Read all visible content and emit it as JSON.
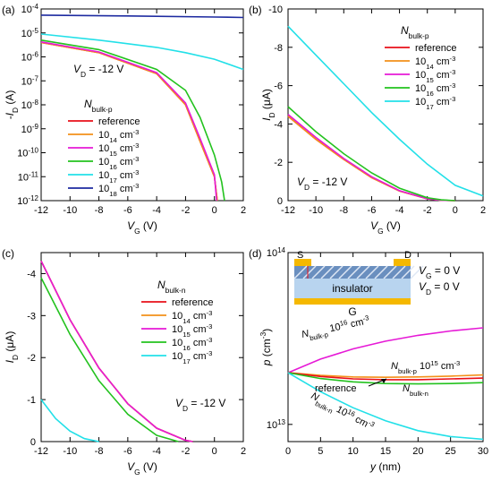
{
  "chart_data": [
    {
      "panel": "(a)",
      "type": "line",
      "xlabel_parts": [
        "V",
        "G",
        " (V)"
      ],
      "ylabel_parts": [
        "-I",
        "D",
        " (A)"
      ],
      "xlim": [
        -12,
        2
      ],
      "ylim_log10": [
        -12,
        -4
      ],
      "log_y": true,
      "x_ticks": [
        "-12",
        "-10",
        "-8",
        "-6",
        "-4",
        "-2",
        "0",
        "2"
      ],
      "y_ticks": [
        {
          "base": "10",
          "exp": "-4"
        },
        {
          "base": "10",
          "exp": "-5"
        },
        {
          "base": "10",
          "exp": "-6"
        },
        {
          "base": "10",
          "exp": "-7"
        },
        {
          "base": "10",
          "exp": "-8"
        },
        {
          "base": "10",
          "exp": "-9"
        },
        {
          "base": "10",
          "exp": "-10"
        },
        {
          "base": "10",
          "exp": "-11"
        },
        {
          "base": "10",
          "exp": "-12"
        }
      ],
      "annotation_parts": [
        "V",
        "D",
        " = -12 V"
      ],
      "legend_title_parts": [
        "N",
        "bulk-p"
      ],
      "series": [
        {
          "name_parts": [
            "reference",
            ""
          ],
          "color": "#e8101a",
          "x": [
            -12,
            -8,
            -4,
            -2,
            -1,
            0,
            0.2
          ],
          "y": [
            4e-06,
            1.5e-06,
            2e-07,
            1e-08,
            3e-10,
            1e-11,
            1e-12
          ]
        },
        {
          "name_parts": [
            "10",
            "14",
            " cm",
            "-3"
          ],
          "color": "#f39019",
          "x": [
            -12,
            -8,
            -4,
            -2,
            -1,
            0,
            0.2
          ],
          "y": [
            4e-06,
            1.5e-06,
            2e-07,
            1e-08,
            3e-10,
            1e-11,
            1e-12
          ]
        },
        {
          "name_parts": [
            "10",
            "15",
            " cm",
            "-3"
          ],
          "color": "#e619d6",
          "x": [
            -12,
            -8,
            -4,
            -2,
            -1,
            0,
            0.15
          ],
          "y": [
            4.2e-06,
            1.6e-06,
            2.2e-07,
            1.2e-08,
            4e-10,
            1.2e-11,
            1e-12
          ]
        },
        {
          "name_parts": [
            "10",
            "16",
            " cm",
            "-3"
          ],
          "color": "#23c21e",
          "x": [
            -12,
            -8,
            -4,
            -2,
            -1,
            0,
            0.5,
            0.7
          ],
          "y": [
            5e-06,
            2e-06,
            3e-07,
            4e-08,
            3e-09,
            8e-11,
            6e-12,
            1e-12
          ]
        },
        {
          "name_parts": [
            "10",
            "17",
            " cm",
            "-3"
          ],
          "color": "#22e0e8",
          "x": [
            -12,
            -8,
            -4,
            -2,
            0,
            2
          ],
          "y": [
            9e-06,
            5e-06,
            2.5e-06,
            1.5e-06,
            8e-07,
            3e-07
          ]
        },
        {
          "name_parts": [
            "10",
            "18",
            " cm",
            "-3"
          ],
          "color": "#1d2aa0",
          "x": [
            -12,
            -6,
            0,
            2
          ],
          "y": [
            5.5e-05,
            5.1e-05,
            4.6e-05,
            4.4e-05
          ]
        }
      ]
    },
    {
      "panel": "(b)",
      "type": "line",
      "xlabel_parts": [
        "V",
        "G",
        " (V)"
      ],
      "ylabel_parts": [
        "I",
        "D",
        " (μA)"
      ],
      "xlim": [
        -12,
        2
      ],
      "ylim": [
        0,
        -10
      ],
      "x_ticks": [
        "-12",
        "-10",
        "-8",
        "-6",
        "-4",
        "-2",
        "0",
        "2"
      ],
      "y_ticks": [
        "-10",
        "-8",
        "-6",
        "-4",
        "-2",
        "0"
      ],
      "annotation_parts": [
        "V",
        "D",
        " = -12 V"
      ],
      "legend_title_parts": [
        "N",
        "bulk-p"
      ],
      "series": [
        {
          "name_parts": [
            "reference",
            ""
          ],
          "color": "#e8101a",
          "x": [
            -12,
            -10,
            -8,
            -6,
            -4,
            -2,
            -1,
            0
          ],
          "y": [
            -4.4,
            -3.2,
            -2.15,
            -1.2,
            -0.5,
            -0.1,
            -0.02,
            0
          ]
        },
        {
          "name_parts": [
            "10",
            "14",
            " cm",
            "-3"
          ],
          "color": "#f39019",
          "x": [
            -12,
            -10,
            -8,
            -6,
            -4,
            -2,
            -1,
            0
          ],
          "y": [
            -4.4,
            -3.2,
            -2.15,
            -1.2,
            -0.5,
            -0.1,
            -0.02,
            0
          ]
        },
        {
          "name_parts": [
            "10",
            "15",
            " cm",
            "-3"
          ],
          "color": "#e619d6",
          "x": [
            -12,
            -10,
            -8,
            -6,
            -4,
            -2,
            -1,
            0
          ],
          "y": [
            -4.5,
            -3.3,
            -2.2,
            -1.25,
            -0.52,
            -0.1,
            -0.02,
            0
          ]
        },
        {
          "name_parts": [
            "10",
            "16",
            " cm",
            "-3"
          ],
          "color": "#23c21e",
          "x": [
            -12,
            -10,
            -8,
            -6,
            -4,
            -2,
            -1,
            0
          ],
          "y": [
            -4.9,
            -3.6,
            -2.45,
            -1.45,
            -0.65,
            -0.15,
            -0.04,
            0
          ]
        },
        {
          "name_parts": [
            "10",
            "17",
            " cm",
            "-3"
          ],
          "color": "#22e0e8",
          "x": [
            -12,
            -10,
            -8,
            -6,
            -4,
            -2,
            0,
            2
          ],
          "y": [
            -9.1,
            -7.6,
            -6.1,
            -4.6,
            -3.2,
            -1.9,
            -0.8,
            -0.25
          ]
        }
      ]
    },
    {
      "panel": "(c)",
      "type": "line",
      "xlabel_parts": [
        "V",
        "G",
        " (V)"
      ],
      "ylabel_parts": [
        "I",
        "D",
        " (μA)"
      ],
      "xlim": [
        -12,
        2
      ],
      "ylim": [
        0,
        -4.5
      ],
      "x_ticks": [
        "-12",
        "-10",
        "-8",
        "-6",
        "-4",
        "-2",
        "0",
        "2"
      ],
      "y_ticks": [
        "-4",
        "-3",
        "-2",
        "-1",
        "0"
      ],
      "annotation_parts": [
        "V",
        "D",
        " = -12 V"
      ],
      "legend_title_parts": [
        "N",
        "bulk-n"
      ],
      "series": [
        {
          "name_parts": [
            "reference",
            ""
          ],
          "color": "#e8101a",
          "x": [
            -12,
            -10,
            -8,
            -6,
            -4,
            -2,
            -1.5
          ],
          "y": [
            -4.3,
            -2.9,
            -1.75,
            -0.9,
            -0.32,
            -0.03,
            0
          ]
        },
        {
          "name_parts": [
            "10",
            "14",
            " cm",
            "-3"
          ],
          "color": "#f39019",
          "x": [
            -12,
            -10,
            -8,
            -6,
            -4,
            -2,
            -1.5
          ],
          "y": [
            -4.3,
            -2.9,
            -1.75,
            -0.9,
            -0.32,
            -0.03,
            0
          ]
        },
        {
          "name_parts": [
            "10",
            "15",
            " cm",
            "-3"
          ],
          "color": "#e619d6",
          "x": [
            -12,
            -10,
            -8,
            -6,
            -4,
            -2,
            -1.5
          ],
          "y": [
            -4.3,
            -2.9,
            -1.75,
            -0.9,
            -0.32,
            -0.03,
            0
          ]
        },
        {
          "name_parts": [
            "10",
            "16",
            " cm",
            "-3"
          ],
          "color": "#23c21e",
          "x": [
            -12,
            -10,
            -8,
            -6,
            -4,
            -2.5
          ],
          "y": [
            -3.9,
            -2.55,
            -1.45,
            -0.65,
            -0.15,
            0
          ]
        },
        {
          "name_parts": [
            "10",
            "17",
            " cm",
            "-3"
          ],
          "color": "#22e0e8",
          "x": [
            -12,
            -11,
            -10,
            -9,
            -8
          ],
          "y": [
            -1.0,
            -0.55,
            -0.25,
            -0.07,
            0
          ]
        }
      ]
    },
    {
      "panel": "(d)",
      "type": "line",
      "xlabel_parts": [
        "y",
        "",
        " (nm)"
      ],
      "ylabel_parts": [
        "p",
        "",
        " (cm",
        "-3",
        ")"
      ],
      "xlim": [
        0,
        30
      ],
      "ylim_log10": [
        12.9,
        14
      ],
      "log_y": true,
      "x_ticks": [
        "0",
        "5",
        "10",
        "15",
        "20",
        "25",
        "30"
      ],
      "y_ticks": [
        {
          "base": "10",
          "exp": "14"
        },
        {
          "base": "10",
          "exp": "13"
        }
      ],
      "inset": {
        "source_label": "S",
        "drain_label": "D",
        "insulator_label": "insulator",
        "gate_label": "G",
        "bias_lines": [
          [
            "V",
            "G",
            " = 0 V"
          ],
          [
            "V",
            "D",
            " = 0 V"
          ]
        ]
      },
      "curve_labels": [
        {
          "name_parts": [
            "N",
            "bulk-p",
            " 10",
            "16",
            " cm",
            "-3"
          ]
        },
        {
          "name_parts": [
            "N",
            "bulk-p",
            "  10",
            "15",
            " cm",
            "-3"
          ]
        },
        {
          "name_parts": [
            "reference",
            ""
          ]
        },
        {
          "name_parts": [
            "N",
            "bulk-n",
            ""
          ]
        },
        {
          "name_parts": [
            "N",
            "bulk-n",
            "  10",
            "16",
            " cm",
            "-3"
          ]
        }
      ],
      "series": [
        {
          "name_parts": [
            "N",
            "bulk-p",
            " 10",
            "16",
            " cm",
            "-3"
          ],
          "color": "#e619d6",
          "x": [
            0,
            5,
            10,
            15,
            20,
            25,
            30
          ],
          "y": [
            20000000000000.0,
            24000000000000.0,
            27500000000000.0,
            30500000000000.0,
            33000000000000.0,
            35000000000000.0,
            36500000000000.0
          ]
        },
        {
          "name_parts": [
            "N",
            "bulk-p",
            " 10",
            "15",
            " cm",
            "-3"
          ],
          "color": "#f39019",
          "x": [
            0,
            5,
            10,
            15,
            20,
            25,
            30
          ],
          "y": [
            20000000000000.0,
            19300000000000.0,
            18900000000000.0,
            18800000000000.0,
            18900000000000.0,
            19100000000000.0,
            19400000000000.0
          ]
        },
        {
          "name_parts": [
            "reference",
            ""
          ],
          "color": "#e8101a",
          "x": [
            0,
            5,
            10,
            15,
            20,
            25,
            30
          ],
          "y": [
            20000000000000.0,
            19000000000000.0,
            18400000000000.0,
            18200000000000.0,
            18200000000000.0,
            18400000000000.0,
            18600000000000.0
          ]
        },
        {
          "name_parts": [
            "N",
            "bulk-n",
            " 10",
            "15",
            " cm",
            "-3"
          ],
          "color": "#23c21e",
          "x": [
            0,
            5,
            10,
            15,
            20,
            25,
            30
          ],
          "y": [
            20000000000000.0,
            18500000000000.0,
            17700000000000.0,
            17300000000000.0,
            17200000000000.0,
            17300000000000.0,
            17500000000000.0
          ]
        },
        {
          "name_parts": [
            "N",
            "bulk-n",
            " 10",
            "16",
            " cm",
            "-3"
          ],
          "color": "#22e0e8",
          "x": [
            0,
            5,
            10,
            15,
            20,
            25,
            30
          ],
          "y": [
            20000000000000.0,
            15500000000000.0,
            12500000000000.0,
            10500000000000.0,
            9200000000000.0,
            8500000000000.0,
            8200000000000.0
          ]
        }
      ]
    }
  ]
}
